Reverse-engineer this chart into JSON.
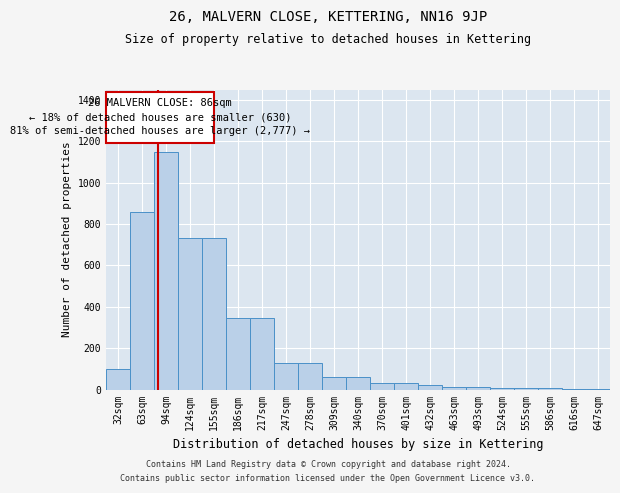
{
  "title": "26, MALVERN CLOSE, KETTERING, NN16 9JP",
  "subtitle": "Size of property relative to detached houses in Kettering",
  "xlabel": "Distribution of detached houses by size in Kettering",
  "ylabel": "Number of detached properties",
  "categories": [
    "32sqm",
    "63sqm",
    "94sqm",
    "124sqm",
    "155sqm",
    "186sqm",
    "217sqm",
    "247sqm",
    "278sqm",
    "309sqm",
    "340sqm",
    "370sqm",
    "401sqm",
    "432sqm",
    "463sqm",
    "493sqm",
    "524sqm",
    "555sqm",
    "586sqm",
    "616sqm",
    "647sqm"
  ],
  "values": [
    100,
    860,
    1150,
    730,
    730,
    345,
    345,
    130,
    130,
    60,
    60,
    30,
    30,
    20,
    10,
    10,
    5,
    5,
    5,
    2,
    2
  ],
  "bar_color": "#bad0e8",
  "bar_edge_color": "#4a90c8",
  "bar_width": 1.0,
  "annotation_box_text": "26 MALVERN CLOSE: 86sqm\n← 18% of detached houses are smaller (630)\n81% of semi-detached houses are larger (2,777) →",
  "annotation_box_facecolor": "#ffffff",
  "annotation_box_edgecolor": "#cc0000",
  "red_line_x": 1.67,
  "ylim": [
    0,
    1450
  ],
  "yticks": [
    0,
    200,
    400,
    600,
    800,
    1000,
    1200,
    1400
  ],
  "grid_color": "#ffffff",
  "plot_bg_color": "#dce6f0",
  "fig_bg_color": "#f5f5f5",
  "title_fontsize": 10,
  "subtitle_fontsize": 8.5,
  "ylabel_fontsize": 8,
  "xlabel_fontsize": 8.5,
  "tick_fontsize": 7,
  "annotation_fontsize": 7.5,
  "footer_fontsize": 6,
  "footer_line1": "Contains HM Land Registry data © Crown copyright and database right 2024.",
  "footer_line2": "Contains public sector information licensed under the Open Government Licence v3.0."
}
